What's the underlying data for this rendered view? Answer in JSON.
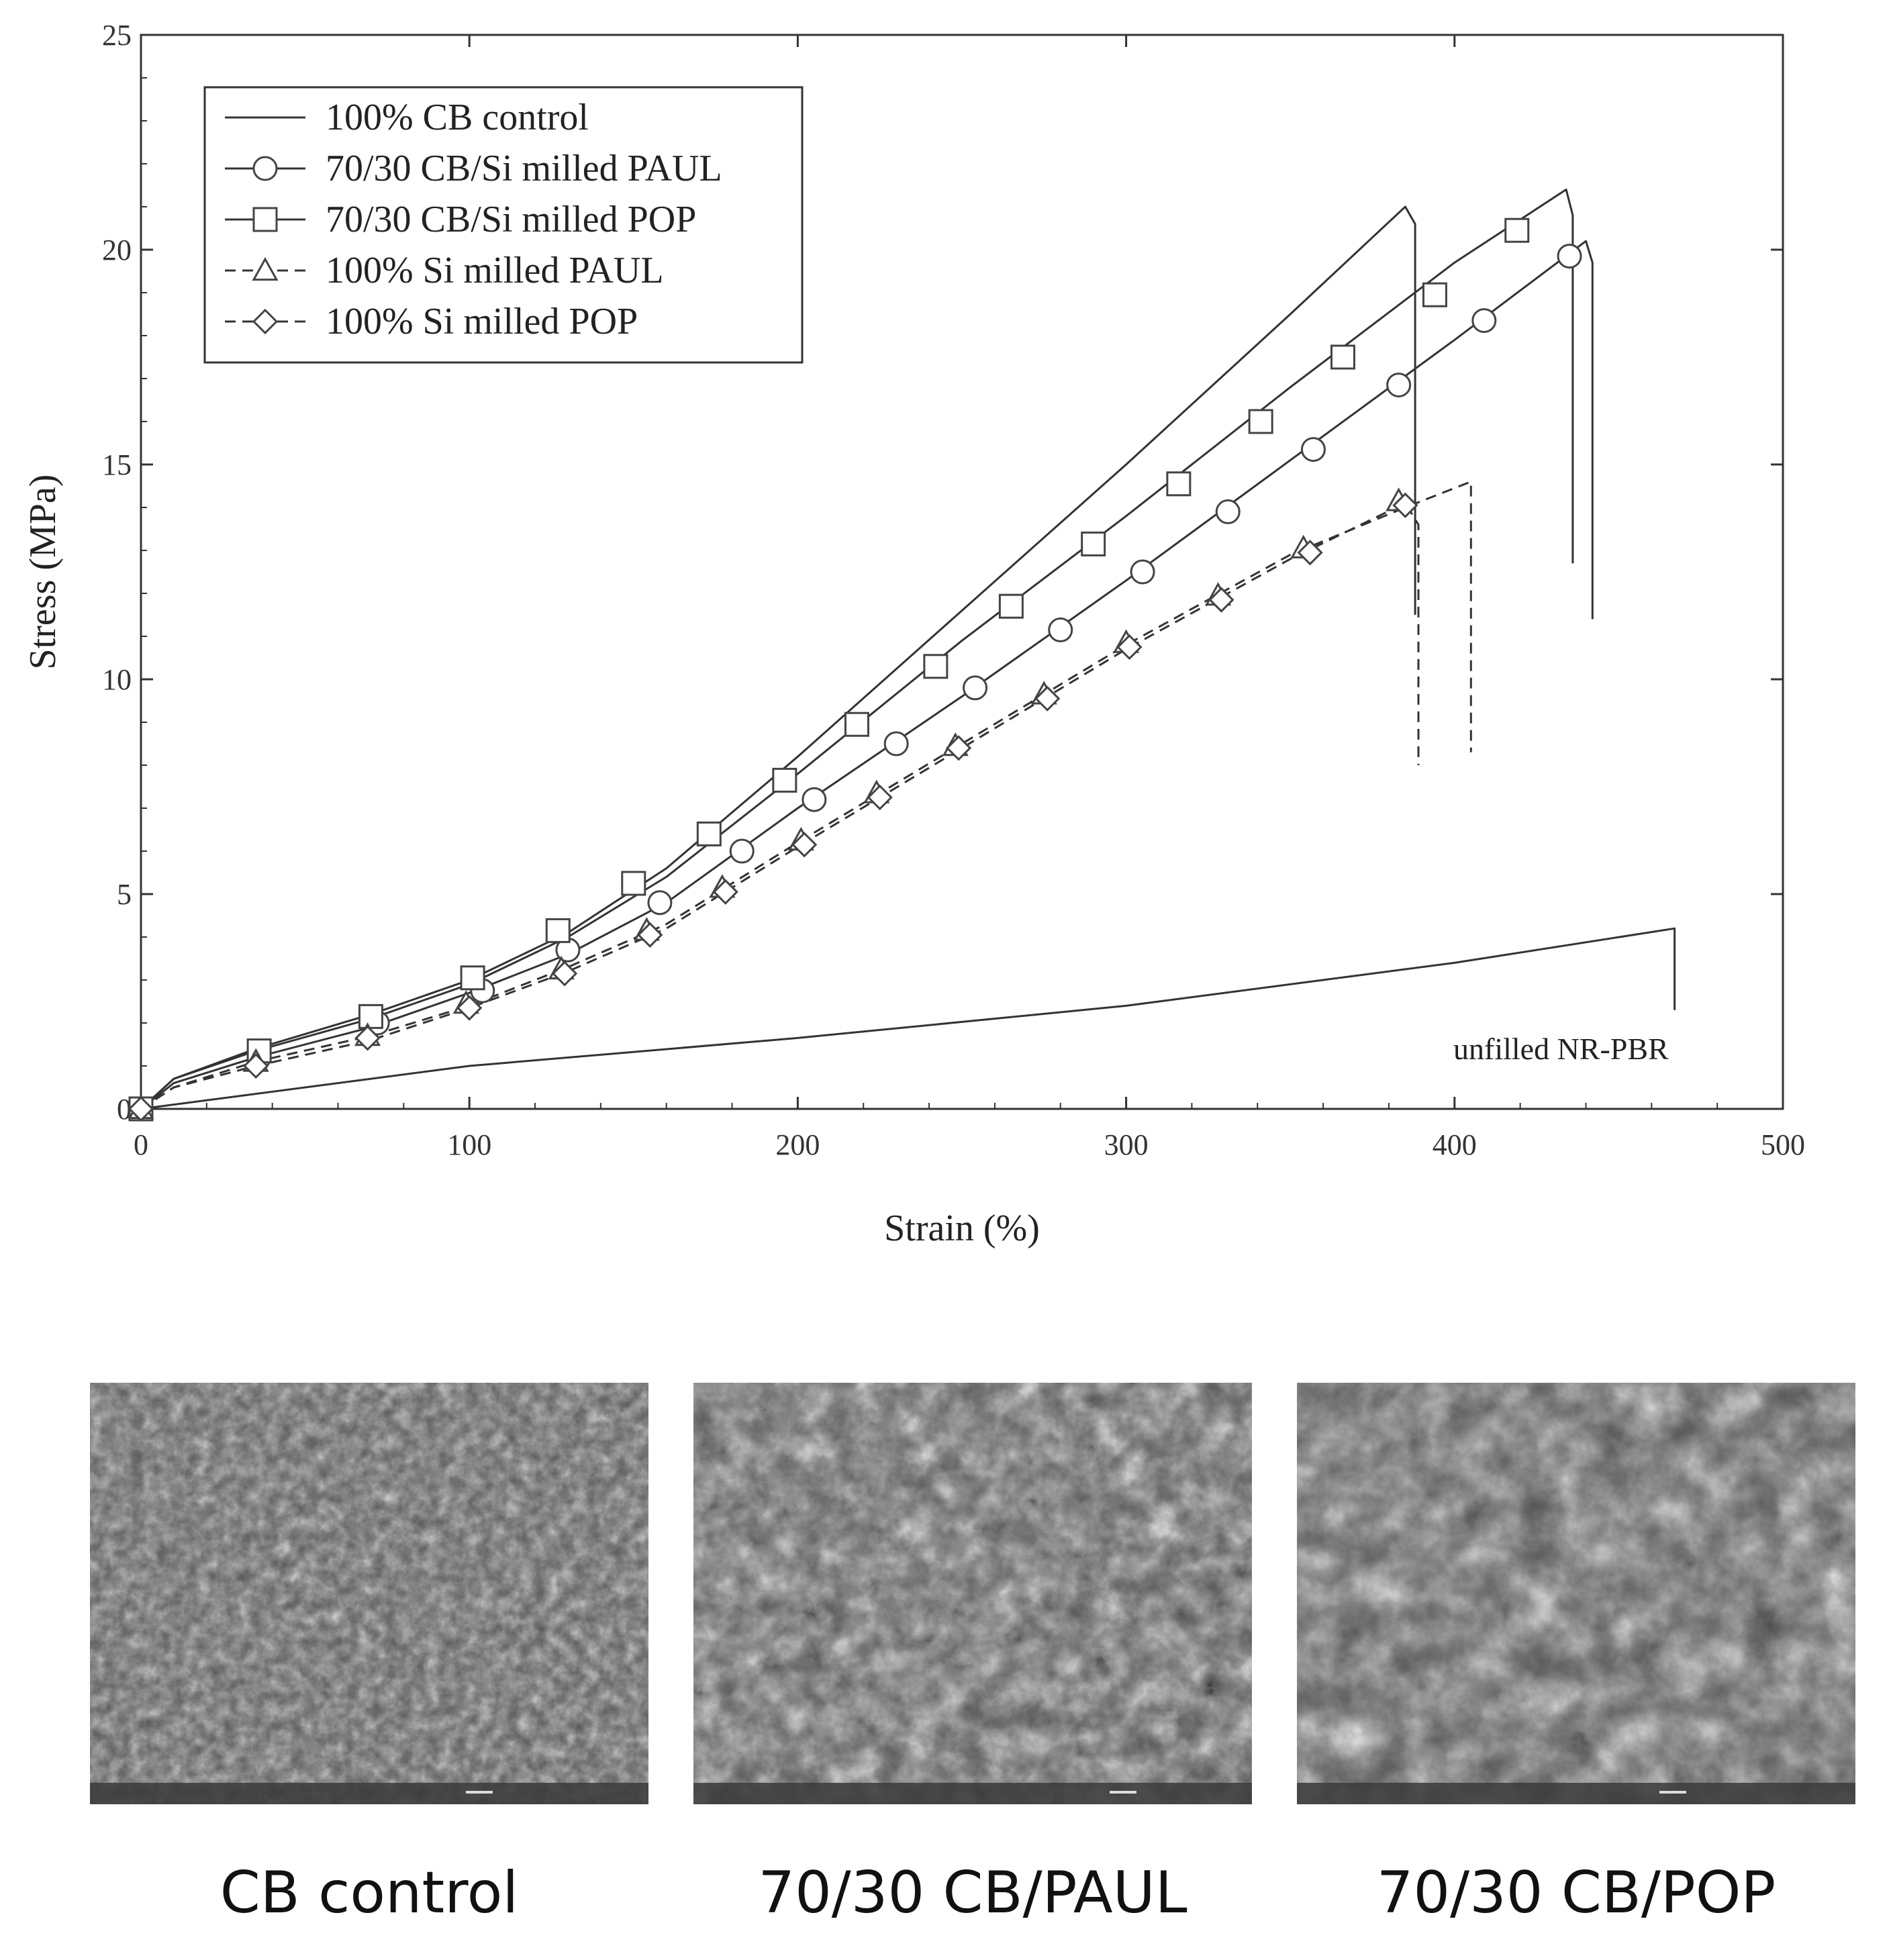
{
  "chart_data": {
    "type": "line",
    "xlabel": "Strain (%)",
    "ylabel": "Stress (MPa)",
    "xlim": [
      0,
      500
    ],
    "ylim": [
      0,
      25
    ],
    "xticks": [
      "0",
      "100",
      "200",
      "300",
      "400",
      "500"
    ],
    "yticks": [
      "0",
      "5",
      "10",
      "15",
      "20",
      "25"
    ],
    "grid": false,
    "legend_position": "top-left",
    "series": [
      {
        "name": "100% CB control",
        "style": "solid",
        "marker": "none",
        "x": [
          0,
          10,
          35,
          70,
          100,
          130,
          160,
          200,
          250,
          300,
          350,
          385,
          388,
          388
        ],
        "y": [
          0,
          0.7,
          1.4,
          2.2,
          3.0,
          4.1,
          5.6,
          8.2,
          11.6,
          15.0,
          18.5,
          21.0,
          20.6,
          11.5
        ]
      },
      {
        "name": "70/30 CB/Si milled PAUL",
        "style": "solid",
        "marker": "circle",
        "x": [
          0,
          10,
          35,
          70,
          100,
          130,
          160,
          200,
          250,
          300,
          350,
          400,
          440,
          442,
          442
        ],
        "y": [
          0,
          0.6,
          1.2,
          1.9,
          2.7,
          3.6,
          4.8,
          7.0,
          9.6,
          12.3,
          15.1,
          17.9,
          20.2,
          19.7,
          11.4
        ]
      },
      {
        "name": "70/30 CB/Si milled POP",
        "style": "solid",
        "marker": "square",
        "x": [
          0,
          10,
          35,
          70,
          100,
          130,
          160,
          200,
          250,
          300,
          350,
          400,
          434,
          436,
          436
        ],
        "y": [
          0,
          0.7,
          1.35,
          2.1,
          2.9,
          4.0,
          5.4,
          7.8,
          10.9,
          13.8,
          16.8,
          19.7,
          21.4,
          20.8,
          12.7
        ]
      },
      {
        "name": "100% Si milled PAUL",
        "style": "dashed",
        "marker": "triangle",
        "x": [
          0,
          10,
          35,
          70,
          100,
          130,
          160,
          200,
          250,
          300,
          350,
          385,
          405,
          405
        ],
        "y": [
          0,
          0.5,
          1.1,
          1.7,
          2.4,
          3.3,
          4.3,
          6.2,
          8.5,
          10.8,
          12.9,
          14.0,
          14.6,
          8.3
        ]
      },
      {
        "name": "100% Si milled POP",
        "style": "dashed",
        "marker": "diamond",
        "x": [
          0,
          10,
          35,
          70,
          100,
          130,
          160,
          200,
          250,
          300,
          350,
          385,
          389,
          389
        ],
        "y": [
          0,
          0.5,
          1.0,
          1.6,
          2.35,
          3.2,
          4.2,
          6.1,
          8.4,
          10.7,
          12.8,
          14.1,
          13.6,
          8.0
        ]
      },
      {
        "name": "",
        "style": "solid",
        "marker": "none",
        "x": [
          0,
          100,
          200,
          300,
          400,
          467,
          467
        ],
        "y": [
          0,
          1.0,
          1.65,
          2.4,
          3.4,
          4.2,
          2.3
        ]
      }
    ],
    "markers": {
      "70/30 CB/Si milled PAUL": {
        "x": [
          0,
          36,
          72,
          104,
          130,
          158,
          183,
          205,
          230,
          254,
          280,
          305,
          331,
          357,
          383,
          409,
          435
        ],
        "y": [
          0,
          1.2,
          2.0,
          2.75,
          3.7,
          4.8,
          6.0,
          7.2,
          8.5,
          9.8,
          11.15,
          12.5,
          13.9,
          15.35,
          16.85,
          18.35,
          19.85
        ]
      },
      "70/30 CB/Si milled POP": {
        "x": [
          0,
          36,
          70,
          101,
          127,
          150,
          173,
          196,
          218,
          242,
          265,
          290,
          316,
          341,
          366,
          394,
          419
        ],
        "y": [
          0,
          1.35,
          2.15,
          3.05,
          4.15,
          5.25,
          6.4,
          7.65,
          8.95,
          10.3,
          11.7,
          13.15,
          14.55,
          16.0,
          17.5,
          18.95,
          20.45
        ]
      },
      "100% Si milled PAUL": {
        "x": [
          0,
          35,
          69,
          99,
          128,
          154,
          177,
          201,
          224,
          248,
          275,
          300,
          328,
          354,
          383
        ],
        "y": [
          0,
          1.1,
          1.7,
          2.45,
          3.25,
          4.15,
          5.15,
          6.25,
          7.35,
          8.45,
          9.65,
          10.85,
          11.95,
          13.05,
          14.15
        ]
      },
      "100% Si milled POP": {
        "x": [
          0,
          35,
          69,
          100,
          129,
          155,
          178,
          202,
          225,
          249,
          276,
          301,
          329,
          356,
          385
        ],
        "y": [
          0,
          1.0,
          1.65,
          2.35,
          3.15,
          4.05,
          5.05,
          6.15,
          7.25,
          8.4,
          9.55,
          10.75,
          11.85,
          12.95,
          14.05
        ]
      }
    },
    "annotations": [
      {
        "text": "unfilled NR-PBR",
        "x": 400,
        "y": 1.5
      }
    ]
  },
  "images": [
    {
      "kind": "sem-micrograph",
      "caption": "CB control",
      "texture": "smooth"
    },
    {
      "kind": "sem-micrograph",
      "caption": "70/30 CB/PAUL",
      "texture": "rough"
    },
    {
      "kind": "sem-micrograph",
      "caption": "70/30 CB/POP",
      "texture": "medium"
    }
  ]
}
